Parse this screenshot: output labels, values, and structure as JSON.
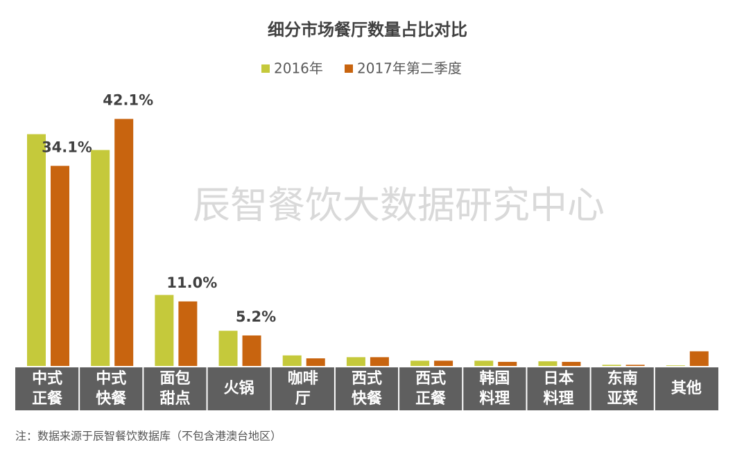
{
  "chart_data": {
    "type": "bar",
    "title": "细分市场餐厅数量占比对比",
    "watermark": "辰智餐饮大数据研究中心",
    "note": "注：数据来源于辰智餐饮数据库（不包含港澳台地区）",
    "categories": [
      "中式正餐",
      "中式快餐",
      "面包甜点",
      "火锅",
      "咖啡厅",
      "西式快餐",
      "西式正餐",
      "韩国料理",
      "日本料理",
      "东南亚菜",
      "其他"
    ],
    "series": [
      {
        "name": "2016年",
        "color": "#c5c93b",
        "values": [
          39.5,
          36.8,
          12.1,
          6.0,
          1.8,
          1.5,
          0.9,
          0.9,
          0.8,
          0.2,
          0.1
        ]
      },
      {
        "name": "2017年第二季度",
        "color": "#c8640f",
        "values": [
          34.1,
          42.1,
          11.0,
          5.2,
          1.3,
          1.5,
          0.9,
          0.7,
          0.7,
          0.2,
          2.5
        ],
        "value_labels": [
          "34.1%",
          "42.1%",
          "11.0%",
          "5.2%",
          null,
          null,
          null,
          null,
          null,
          null,
          null
        ]
      }
    ],
    "ylim": [
      0,
      45
    ],
    "legend": "top"
  }
}
